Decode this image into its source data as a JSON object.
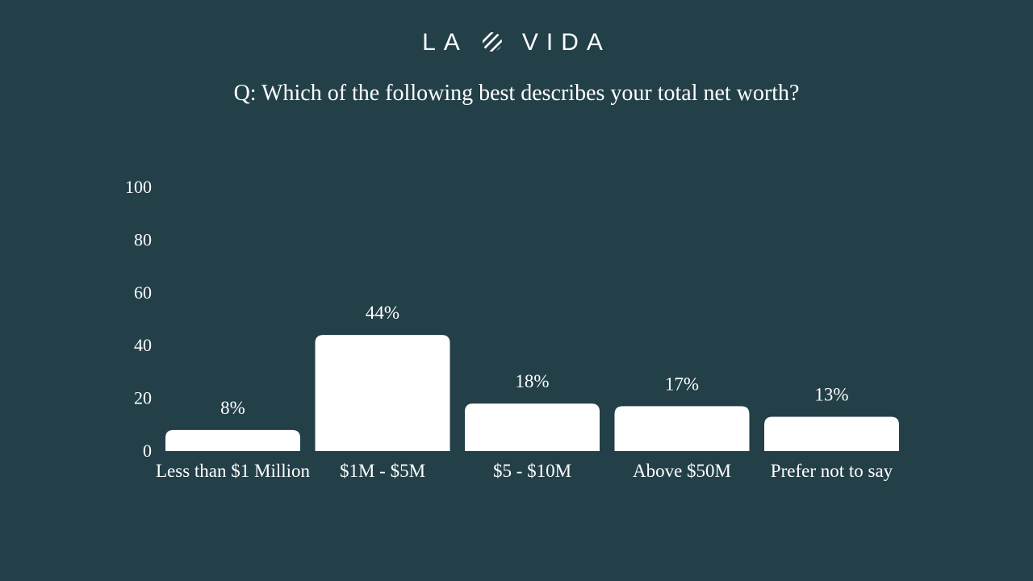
{
  "logo": {
    "left": "LA",
    "right": "VIDA"
  },
  "colors": {
    "background": "#234049",
    "bar": "#ffffff",
    "text": "#ffffff"
  },
  "chart_data": {
    "type": "bar",
    "title": "Q: Which of the following best describes your total net worth?",
    "categories": [
      "Less than $1 Million",
      "$1M - $5M",
      "$5 - $10M",
      "Above $50M",
      "Prefer not to say"
    ],
    "values": [
      8,
      44,
      18,
      17,
      13
    ],
    "data_labels": [
      "8%",
      "44%",
      "18%",
      "17%",
      "13%"
    ],
    "yticks": [
      "0",
      "20",
      "40",
      "60",
      "80",
      "100"
    ],
    "ylim": [
      0,
      100
    ],
    "xlabel": "",
    "ylabel": "",
    "grid": false,
    "legend": "none"
  }
}
